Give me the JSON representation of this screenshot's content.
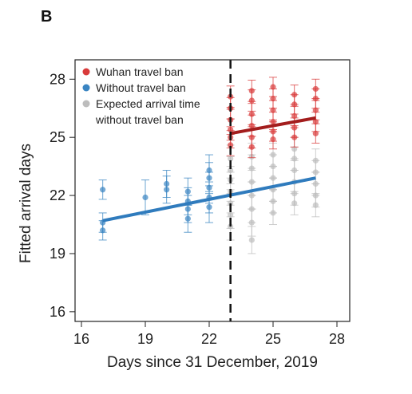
{
  "panel_label": "B",
  "chart_data": {
    "type": "scatter",
    "title": "",
    "xlabel": "Days since 31 December, 2019",
    "ylabel": "Fitted arrival days",
    "xlim": [
      15.7,
      28.6
    ],
    "ylim": [
      15.5,
      29.0
    ],
    "xticks": [
      16,
      19,
      22,
      25,
      28
    ],
    "yticks": [
      16,
      19,
      22,
      25,
      28
    ],
    "grid": false,
    "legend_position": "top-left",
    "ban_day": 23,
    "series": [
      {
        "name": "Wuhan travel ban",
        "color": "#d93b3b",
        "trend_color": "#a31d1d",
        "trend": {
          "x": [
            23,
            27
          ],
          "y": [
            25.2,
            26.0
          ]
        },
        "points": [
          {
            "x": 23,
            "y": [
              24.6,
              25.0,
              25.4,
              25.9,
              26.5,
              27.1
            ],
            "err": 0.55
          },
          {
            "x": 24,
            "y": [
              24.5,
              25.0,
              25.6,
              26.2,
              26.9,
              27.4
            ],
            "err": 0.55
          },
          {
            "x": 25,
            "y": [
              24.9,
              25.3,
              25.8,
              26.4,
              27.0,
              27.6
            ],
            "err": 0.5
          },
          {
            "x": 26,
            "y": [
              25.0,
              25.5,
              26.1,
              26.7,
              27.2
            ],
            "err": 0.5
          },
          {
            "x": 27,
            "y": [
              25.2,
              25.8,
              26.4,
              27.0,
              27.5
            ],
            "err": 0.5
          }
        ]
      },
      {
        "name": "Without travel ban",
        "color": "#3a85c2",
        "trend_color": "#2f7bbd",
        "trend": {
          "x": [
            17,
            27
          ],
          "y": [
            20.7,
            22.9
          ]
        },
        "points": [
          {
            "x": 17,
            "y": [
              20.2,
              20.6,
              22.3
            ],
            "err": 0.5
          },
          {
            "x": 19,
            "y": [
              21.9
            ],
            "err": 0.9
          },
          {
            "x": 20,
            "y": [
              22.3,
              22.6
            ],
            "err": 0.7
          },
          {
            "x": 21,
            "y": [
              20.8,
              21.3,
              21.7,
              22.2
            ],
            "err": 0.7
          },
          {
            "x": 22,
            "y": [
              21.4,
              21.9,
              22.4,
              22.9,
              23.3
            ],
            "err": 0.8
          }
        ]
      },
      {
        "name": "Expected arrival time without travel ban",
        "legend_lines": [
          "Expected arrival time",
          "without travel ban"
        ],
        "color": "#bdbdbd",
        "trend": null,
        "points": [
          {
            "x": 23,
            "y": [
              20.4,
              21.0,
              21.6,
              22.2,
              22.8,
              23.3,
              23.9
            ],
            "err": 0.7
          },
          {
            "x": 24,
            "y": [
              19.7,
              20.6,
              21.3,
              22.0,
              22.7,
              23.4,
              24.0
            ],
            "err": 0.7
          },
          {
            "x": 25,
            "y": [
              21.1,
              21.7,
              22.3,
              22.9,
              23.5,
              24.1
            ],
            "err": 0.6
          },
          {
            "x": 26,
            "y": [
              21.6,
              22.1,
              22.7,
              23.3,
              23.9,
              24.4
            ],
            "err": 0.6
          },
          {
            "x": 27,
            "y": [
              21.5,
              22.0,
              22.6,
              23.2,
              23.8
            ],
            "err": 0.6
          }
        ]
      }
    ]
  }
}
